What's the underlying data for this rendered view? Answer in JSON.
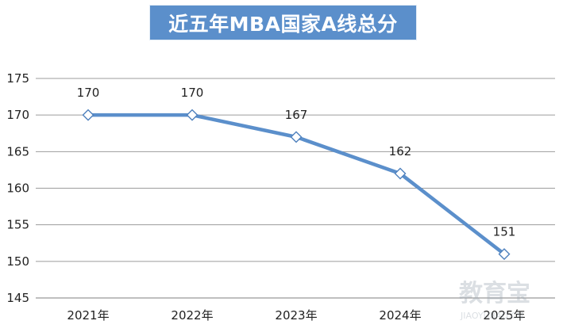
{
  "chart_data": {
    "type": "line",
    "title": "近五年MBA国家A线总分",
    "categories": [
      "2021年",
      "2022年",
      "2023年",
      "2024年",
      "2025年"
    ],
    "series": [
      {
        "name": "总分",
        "values": [
          170,
          170,
          167,
          162,
          151
        ],
        "color": "#5b8fcb"
      }
    ],
    "data_labels": [
      "170",
      "170",
      "167",
      "162",
      "151"
    ],
    "y_ticks": [
      "145",
      "150",
      "155",
      "160",
      "165",
      "170",
      "175"
    ],
    "ylim": [
      145,
      175
    ],
    "ystep": 5,
    "grid": true,
    "xlabel": "",
    "ylabel": ""
  },
  "watermark": {
    "text": "教育宝",
    "sub": "JIAOYUBAO.CN"
  }
}
